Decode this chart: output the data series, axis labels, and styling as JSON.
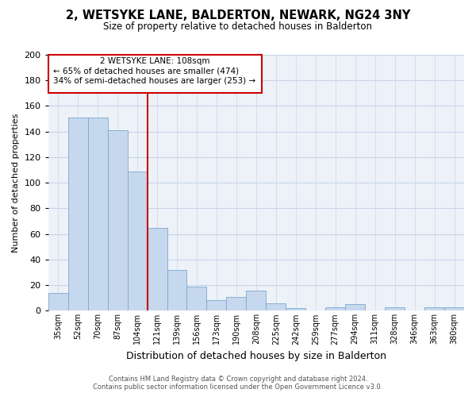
{
  "title": "2, WETSYKE LANE, BALDERTON, NEWARK, NG24 3NY",
  "subtitle": "Size of property relative to detached houses in Balderton",
  "xlabel": "Distribution of detached houses by size in Balderton",
  "ylabel": "Number of detached properties",
  "bar_labels": [
    "35sqm",
    "52sqm",
    "70sqm",
    "87sqm",
    "104sqm",
    "121sqm",
    "139sqm",
    "156sqm",
    "173sqm",
    "190sqm",
    "208sqm",
    "225sqm",
    "242sqm",
    "259sqm",
    "277sqm",
    "294sqm",
    "311sqm",
    "328sqm",
    "346sqm",
    "363sqm",
    "380sqm"
  ],
  "bar_values": [
    14,
    151,
    151,
    141,
    109,
    65,
    32,
    19,
    8,
    11,
    16,
    6,
    2,
    0,
    3,
    5,
    0,
    3,
    0,
    3,
    3
  ],
  "bar_color": "#c5d8ed",
  "bar_edge_color": "#7da8d0",
  "vline_x": 4.5,
  "vline_color": "#cc0000",
  "ylim": [
    0,
    200
  ],
  "yticks": [
    0,
    20,
    40,
    60,
    80,
    100,
    120,
    140,
    160,
    180,
    200
  ],
  "annotation_title": "2 WETSYKE LANE: 108sqm",
  "annotation_line1": "← 65% of detached houses are smaller (474)",
  "annotation_line2": "34% of semi-detached houses are larger (253) →",
  "annotation_box_color": "#cc0000",
  "footer_line1": "Contains HM Land Registry data © Crown copyright and database right 2024.",
  "footer_line2": "Contains public sector information licensed under the Open Government Licence v3.0.",
  "bg_color": "#edf2f9",
  "grid_color": "#c8d4e8"
}
